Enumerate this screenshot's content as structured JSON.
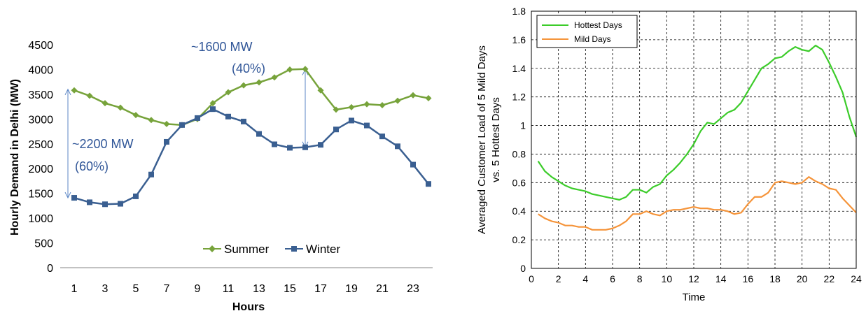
{
  "chart_data": [
    {
      "type": "line",
      "title": "",
      "xlabel": "Hours",
      "ylabel": "Hourly Demand in Delhi (MW)",
      "ylim": [
        0,
        4500
      ],
      "yticks": [
        "0",
        "500",
        "1000",
        "1500",
        "2000",
        "2500",
        "3000",
        "3500",
        "4000",
        "4500"
      ],
      "xticks": [
        "1",
        "3",
        "5",
        "7",
        "9",
        "11",
        "13",
        "15",
        "17",
        "19",
        "21",
        "23"
      ],
      "grid": false,
      "legend": "bottom-right",
      "x": [
        1,
        2,
        3,
        4,
        5,
        6,
        7,
        8,
        9,
        10,
        11,
        12,
        13,
        14,
        15,
        16,
        17,
        18,
        19,
        20,
        21,
        22,
        23,
        24
      ],
      "series": [
        {
          "name": "Summer",
          "color": "#77a33b",
          "marker": "diamond",
          "values": [
            3580,
            3470,
            3320,
            3230,
            3080,
            2980,
            2900,
            2880,
            3000,
            3320,
            3540,
            3680,
            3740,
            3840,
            4000,
            4010,
            3580,
            3190,
            3240,
            3300,
            3280,
            3370,
            3480,
            3420
          ]
        },
        {
          "name": "Winter",
          "color": "#3a5f91",
          "marker": "square",
          "values": [
            1410,
            1320,
            1280,
            1290,
            1440,
            1880,
            2540,
            2880,
            3020,
            3200,
            3050,
            2950,
            2700,
            2490,
            2420,
            2430,
            2480,
            2790,
            2970,
            2870,
            2650,
            2450,
            2080,
            1690
          ]
        }
      ],
      "annotations": [
        {
          "line1": "~2200 MW",
          "line2": "(60%)",
          "x": 1,
          "y_from": 1410,
          "y_to": 3600
        },
        {
          "line1": "~1600 MW",
          "line2": "(40%)",
          "x": 16,
          "y_from": 2430,
          "y_to": 4000
        }
      ]
    },
    {
      "type": "line",
      "title": "",
      "xlabel": "Time",
      "ylabel_line1": "Averaged Customer Load of 5 Mild Days",
      "ylabel_line2": "vs. 5 Hottest Days",
      "xlim": [
        0,
        24
      ],
      "ylim": [
        0,
        1.8
      ],
      "xticks": [
        "0",
        "2",
        "4",
        "6",
        "8",
        "10",
        "12",
        "14",
        "16",
        "18",
        "20",
        "22",
        "24"
      ],
      "yticks": [
        "0",
        "0.2",
        "0.4",
        "0.6",
        "0.8",
        "1",
        "1.2",
        "1.4",
        "1.6",
        "1.8"
      ],
      "grid": true,
      "legend": "top-left",
      "series": [
        {
          "name": "Hottest Days",
          "color": "#3ccc2a",
          "x": [
            0.5,
            1,
            1.5,
            2,
            2.5,
            3,
            3.5,
            4,
            4.5,
            5,
            5.5,
            6,
            6.5,
            7,
            7.5,
            8,
            8.5,
            9,
            9.5,
            10,
            10.5,
            11,
            11.5,
            12,
            12.5,
            13,
            13.5,
            14,
            14.5,
            15,
            15.5,
            16,
            16.5,
            17,
            17.5,
            18,
            18.5,
            19,
            19.5,
            20,
            20.5,
            21,
            21.5,
            22,
            22.5,
            23,
            23.5,
            24
          ],
          "values": [
            0.75,
            0.68,
            0.64,
            0.61,
            0.58,
            0.56,
            0.55,
            0.54,
            0.52,
            0.51,
            0.5,
            0.49,
            0.48,
            0.5,
            0.55,
            0.55,
            0.53,
            0.57,
            0.59,
            0.65,
            0.69,
            0.74,
            0.8,
            0.87,
            0.96,
            1.02,
            1.01,
            1.05,
            1.09,
            1.11,
            1.16,
            1.24,
            1.32,
            1.4,
            1.43,
            1.47,
            1.48,
            1.52,
            1.55,
            1.53,
            1.52,
            1.56,
            1.53,
            1.44,
            1.34,
            1.23,
            1.06,
            0.92
          ]
        },
        {
          "name": "Mild Days",
          "color": "#f5943a",
          "x": [
            0.5,
            1,
            1.5,
            2,
            2.5,
            3,
            3.5,
            4,
            4.5,
            5,
            5.5,
            6,
            6.5,
            7,
            7.5,
            8,
            8.5,
            9,
            9.5,
            10,
            10.5,
            11,
            11.5,
            12,
            12.5,
            13,
            13.5,
            14,
            14.5,
            15,
            15.5,
            16,
            16.5,
            17,
            17.5,
            18,
            18.5,
            19,
            19.5,
            20,
            20.5,
            21,
            21.5,
            22,
            22.5,
            23,
            23.5,
            24
          ],
          "values": [
            0.38,
            0.35,
            0.33,
            0.32,
            0.3,
            0.3,
            0.29,
            0.29,
            0.27,
            0.27,
            0.27,
            0.28,
            0.3,
            0.33,
            0.38,
            0.38,
            0.4,
            0.38,
            0.37,
            0.4,
            0.41,
            0.41,
            0.42,
            0.43,
            0.42,
            0.42,
            0.41,
            0.41,
            0.4,
            0.38,
            0.39,
            0.45,
            0.5,
            0.5,
            0.53,
            0.6,
            0.61,
            0.6,
            0.59,
            0.6,
            0.64,
            0.61,
            0.59,
            0.56,
            0.55,
            0.49,
            0.44,
            0.39
          ]
        }
      ]
    }
  ]
}
